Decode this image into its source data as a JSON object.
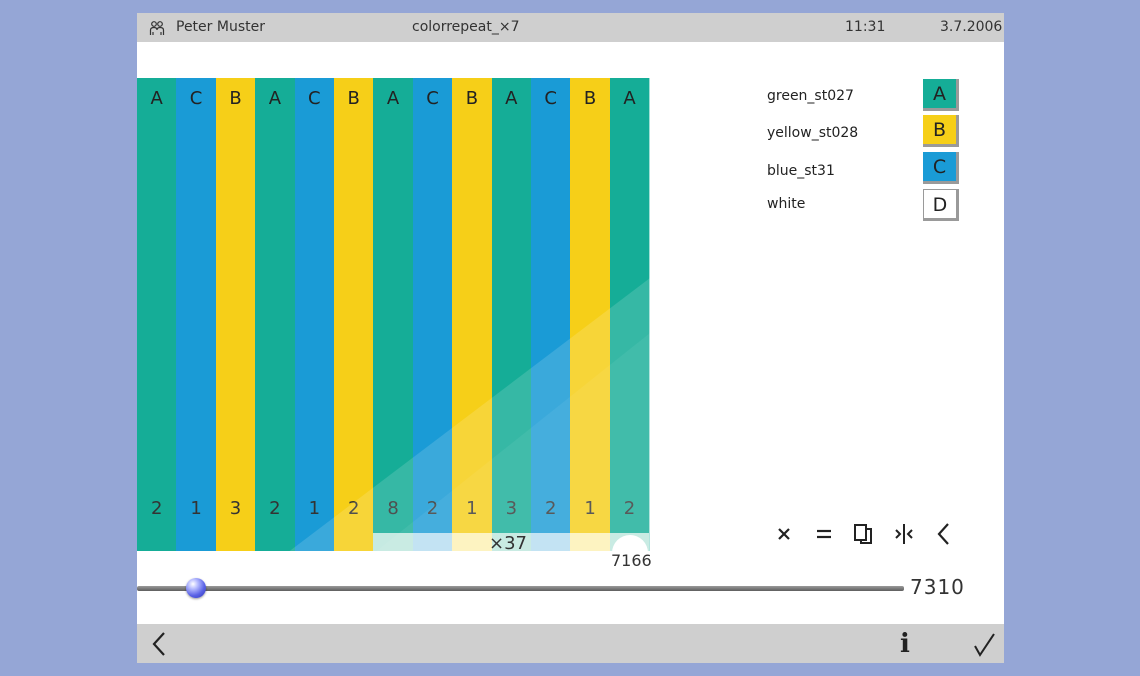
{
  "header": {
    "user_name": "Peter Muster",
    "document_title": "colorrepeat_×7",
    "time": "11:31",
    "date": "3.7.2006"
  },
  "colors": {
    "A": "#15ad97",
    "B": "#f6cf18",
    "C": "#1a9bd6",
    "D": "#ffffff"
  },
  "stripes": [
    {
      "label": "A",
      "count": "2"
    },
    {
      "label": "C",
      "count": "1"
    },
    {
      "label": "B",
      "count": "3"
    },
    {
      "label": "A",
      "count": "2"
    },
    {
      "label": "C",
      "count": "1"
    },
    {
      "label": "B",
      "count": "2"
    },
    {
      "label": "A",
      "count": "8"
    },
    {
      "label": "C",
      "count": "2"
    },
    {
      "label": "B",
      "count": "1"
    },
    {
      "label": "A",
      "count": "3"
    },
    {
      "label": "C",
      "count": "2"
    },
    {
      "label": "B",
      "count": "1"
    },
    {
      "label": "A",
      "count": "2"
    }
  ],
  "repeat": {
    "label": "×37",
    "start_index": 6,
    "total": "7166"
  },
  "slider": {
    "max_label": "7310",
    "position_fraction": 0.077
  },
  "legend": [
    {
      "name": "green_st027",
      "key": "A"
    },
    {
      "name": "yellow_st028",
      "key": "B"
    },
    {
      "name": "blue_st31",
      "key": "C"
    },
    {
      "name": "white",
      "key": "D"
    }
  ],
  "toolbar": {
    "icons": [
      "multiply-icon",
      "equals-icon",
      "copy-icon",
      "mirror-icon",
      "back-chevron-icon"
    ]
  },
  "bottom": {
    "back_icon": "back-chevron-icon",
    "info_label": "i",
    "confirm_icon": "checkmark-icon"
  }
}
